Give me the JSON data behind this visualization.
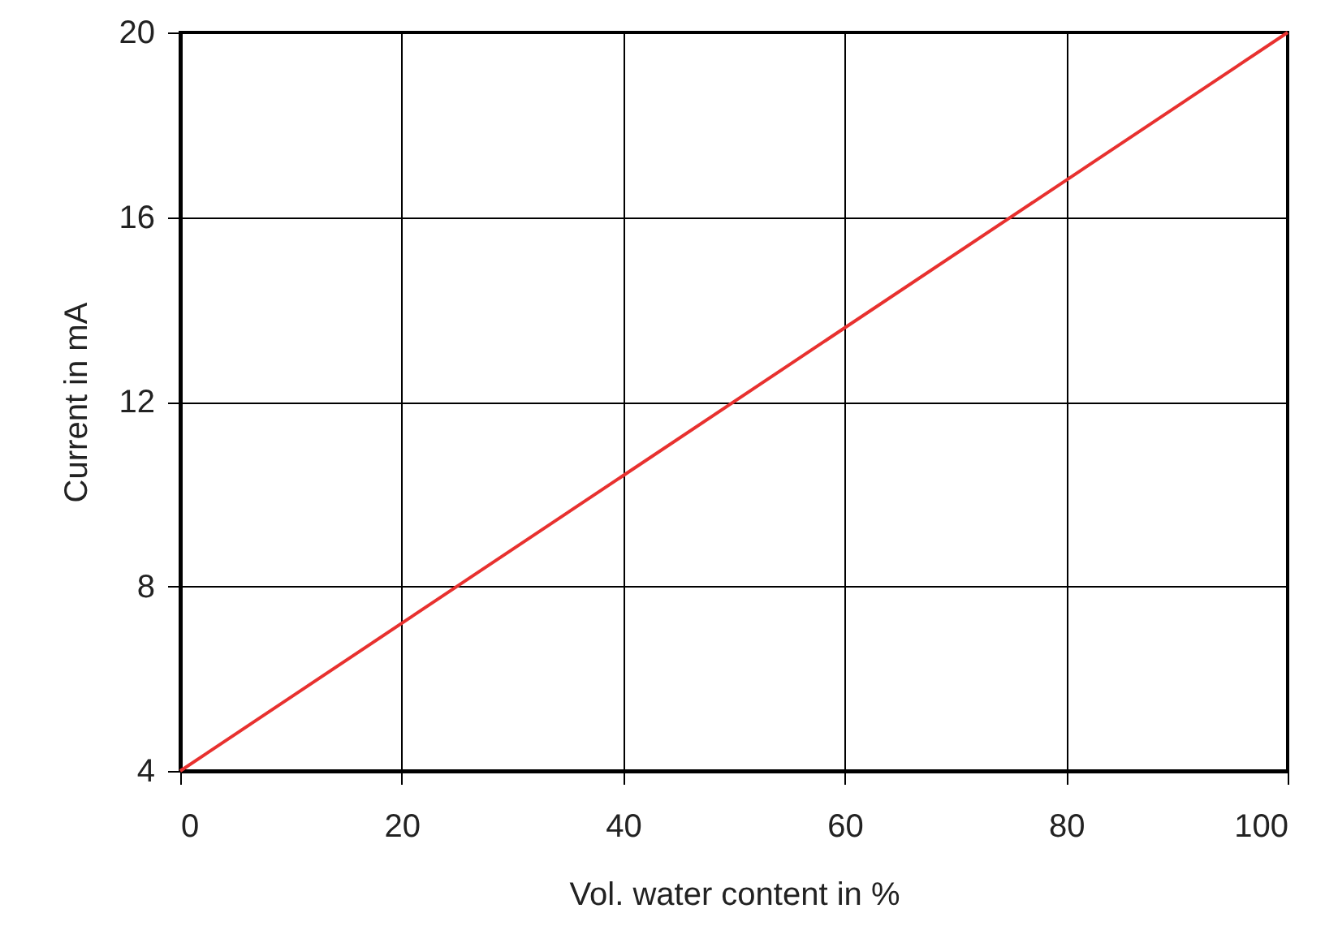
{
  "chart_data": {
    "type": "line",
    "xlabel": "Vol. water content in %",
    "ylabel": "Current in mA",
    "x": [
      0,
      100
    ],
    "series": [
      {
        "color": "#e8312f",
        "values": [
          4,
          20
        ]
      }
    ],
    "xlim": [
      0,
      100
    ],
    "ylim": [
      4,
      20
    ],
    "xticks": [
      0,
      20,
      40,
      60,
      80,
      100
    ],
    "yticks": [
      4,
      8,
      12,
      16,
      20
    ],
    "grid": true
  }
}
